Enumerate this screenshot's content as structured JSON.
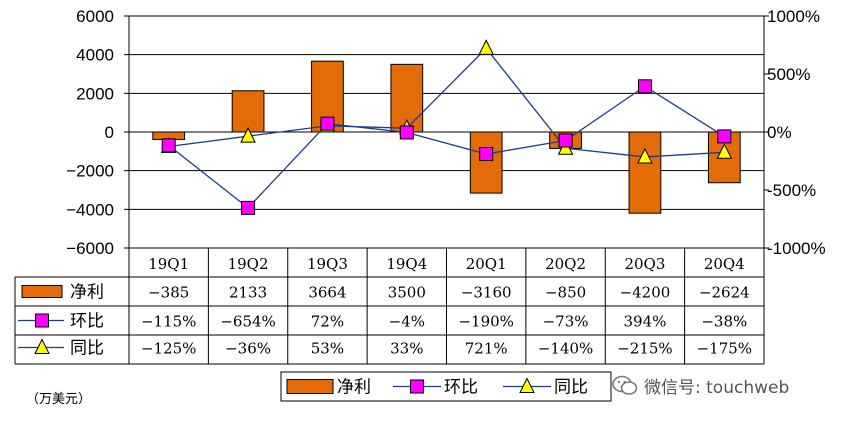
{
  "chart_data": {
    "type": "bar",
    "categories": [
      "19Q1",
      "19Q2",
      "19Q3",
      "19Q4",
      "20Q1",
      "20Q2",
      "20Q3",
      "20Q4"
    ],
    "series": [
      {
        "name": "净利",
        "type": "bar",
        "axis": "left",
        "values": [
          -385,
          2133,
          3664,
          3500,
          -3160,
          -850,
          -4200,
          -2624
        ],
        "color": "#E36C09"
      },
      {
        "name": "环比",
        "type": "line",
        "axis": "right",
        "values": [
          -115,
          -654,
          72,
          -4,
          -190,
          -73,
          394,
          -38
        ],
        "color": "#FF00FF"
      },
      {
        "name": "同比",
        "type": "line",
        "axis": "right",
        "values": [
          -125,
          -36,
          53,
          33,
          721,
          -140,
          -215,
          -175
        ],
        "color": "#FFFF00"
      }
    ],
    "ylim": [
      -6000,
      6000
    ],
    "yticks": [
      "6000",
      "4000",
      "2000",
      "0",
      "−2000",
      "−4000",
      "−6000"
    ],
    "y2lim": [
      -1000,
      1000
    ],
    "y2ticks": [
      "1000%",
      "500%",
      "0%",
      "-500%",
      "-1000%"
    ],
    "table_rows": [
      {
        "label": "净利",
        "cells": [
          "−385",
          "2133",
          "3664",
          "3500",
          "−3160",
          "−850",
          "−4200",
          "−2624"
        ]
      },
      {
        "label": "环比",
        "cells": [
          "−115%",
          "−654%",
          "72%",
          "−4%",
          "−190%",
          "−73%",
          "394%",
          "−38%"
        ]
      },
      {
        "label": "同比",
        "cells": [
          "−125%",
          "−36%",
          "53%",
          "33%",
          "721%",
          "−140%",
          "−215%",
          "−175%"
        ]
      }
    ],
    "grid": true,
    "legend_position": "bottom"
  },
  "unit_label": "（万美元）",
  "watermark": "微信号: touchweb"
}
